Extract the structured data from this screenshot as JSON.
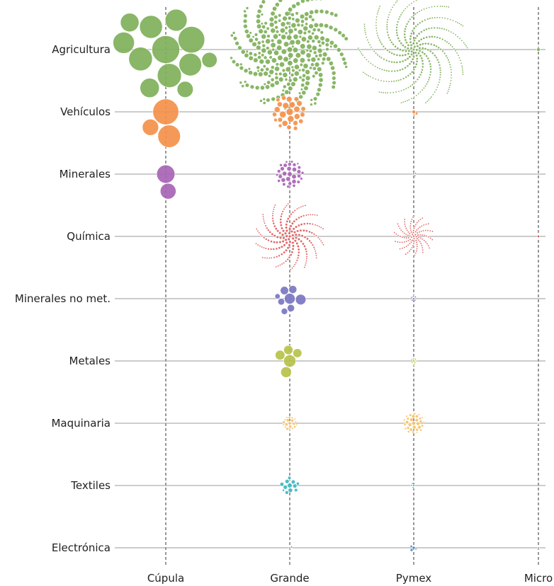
{
  "chart_data": {
    "type": "scatter",
    "title": "",
    "xlabel": "",
    "ylabel": "",
    "grid": true,
    "x_categories": [
      "Cúpula",
      "Grande",
      "Pymex",
      "Micro"
    ],
    "y_categories": [
      "Agricultura",
      "Vehículos",
      "Minerales",
      "Química",
      "Minerales no met.",
      "Metales",
      "Maquinaria",
      "Textiles",
      "Electrónica"
    ],
    "colors": {
      "Agricultura": "#7fb05a",
      "Vehículos": "#f4904a",
      "Minerales": "#a764b4",
      "Química": "#e05a5a",
      "Minerales no met.": "#7a76c2",
      "Metales": "#b7c24a",
      "Maquinaria": "#f5c26a",
      "Textiles": "#3fb7c2",
      "Electrónica": "#4a88c7"
    },
    "cells": [
      {
        "sector": "Agricultura",
        "size": "Cúpula",
        "firms": 12,
        "relative_magnitude": 1.0
      },
      {
        "sector": "Agricultura",
        "size": "Grande",
        "firms": 300,
        "relative_magnitude": 0.9
      },
      {
        "sector": "Agricultura",
        "size": "Pymex",
        "firms": 400,
        "relative_magnitude": 0.25
      },
      {
        "sector": "Agricultura",
        "size": "Micro",
        "firms": 1,
        "relative_magnitude": 0.002
      },
      {
        "sector": "Vehículos",
        "size": "Cúpula",
        "firms": 3,
        "relative_magnitude": 0.25
      },
      {
        "sector": "Vehículos",
        "size": "Grande",
        "firms": 25,
        "relative_magnitude": 0.12
      },
      {
        "sector": "Vehículos",
        "size": "Pymex",
        "firms": 3,
        "relative_magnitude": 0.004
      },
      {
        "sector": "Minerales",
        "size": "Cúpula",
        "firms": 2,
        "relative_magnitude": 0.1
      },
      {
        "sector": "Minerales",
        "size": "Grande",
        "firms": 30,
        "relative_magnitude": 0.07
      },
      {
        "sector": "Minerales",
        "size": "Pymex",
        "firms": 3,
        "relative_magnitude": 0.001
      },
      {
        "sector": "Minerales",
        "size": "Micro",
        "firms": 1,
        "relative_magnitude": 0.0005
      },
      {
        "sector": "Química",
        "size": "Grande",
        "firms": 200,
        "relative_magnitude": 0.15
      },
      {
        "sector": "Química",
        "size": "Pymex",
        "firms": 120,
        "relative_magnitude": 0.045
      },
      {
        "sector": "Química",
        "size": "Micro",
        "firms": 1,
        "relative_magnitude": 0.001
      },
      {
        "sector": "Minerales no met.",
        "size": "Grande",
        "firms": 8,
        "relative_magnitude": 0.09
      },
      {
        "sector": "Minerales no met.",
        "size": "Pymex",
        "firms": 6,
        "relative_magnitude": 0.002
      },
      {
        "sector": "Metales",
        "size": "Grande",
        "firms": 5,
        "relative_magnitude": 0.09
      },
      {
        "sector": "Metales",
        "size": "Pymex",
        "firms": 8,
        "relative_magnitude": 0.003
      },
      {
        "sector": "Maquinaria",
        "size": "Grande",
        "firms": 20,
        "relative_magnitude": 0.02
      },
      {
        "sector": "Maquinaria",
        "size": "Pymex",
        "firms": 30,
        "relative_magnitude": 0.04
      },
      {
        "sector": "Maquinaria",
        "size": "Micro",
        "firms": 1,
        "relative_magnitude": 0.0005
      },
      {
        "sector": "Textiles",
        "size": "Grande",
        "firms": 12,
        "relative_magnitude": 0.03
      },
      {
        "sector": "Textiles",
        "size": "Pymex",
        "firms": 4,
        "relative_magnitude": 0.002
      },
      {
        "sector": "Electrónica",
        "size": "Grande",
        "firms": 2,
        "relative_magnitude": 0.0004
      },
      {
        "sector": "Electrónica",
        "size": "Pymex",
        "firms": 4,
        "relative_magnitude": 0.004
      },
      {
        "sector": "Electrónica",
        "size": "Micro",
        "firms": 1,
        "relative_magnitude": 0.0003
      }
    ]
  }
}
